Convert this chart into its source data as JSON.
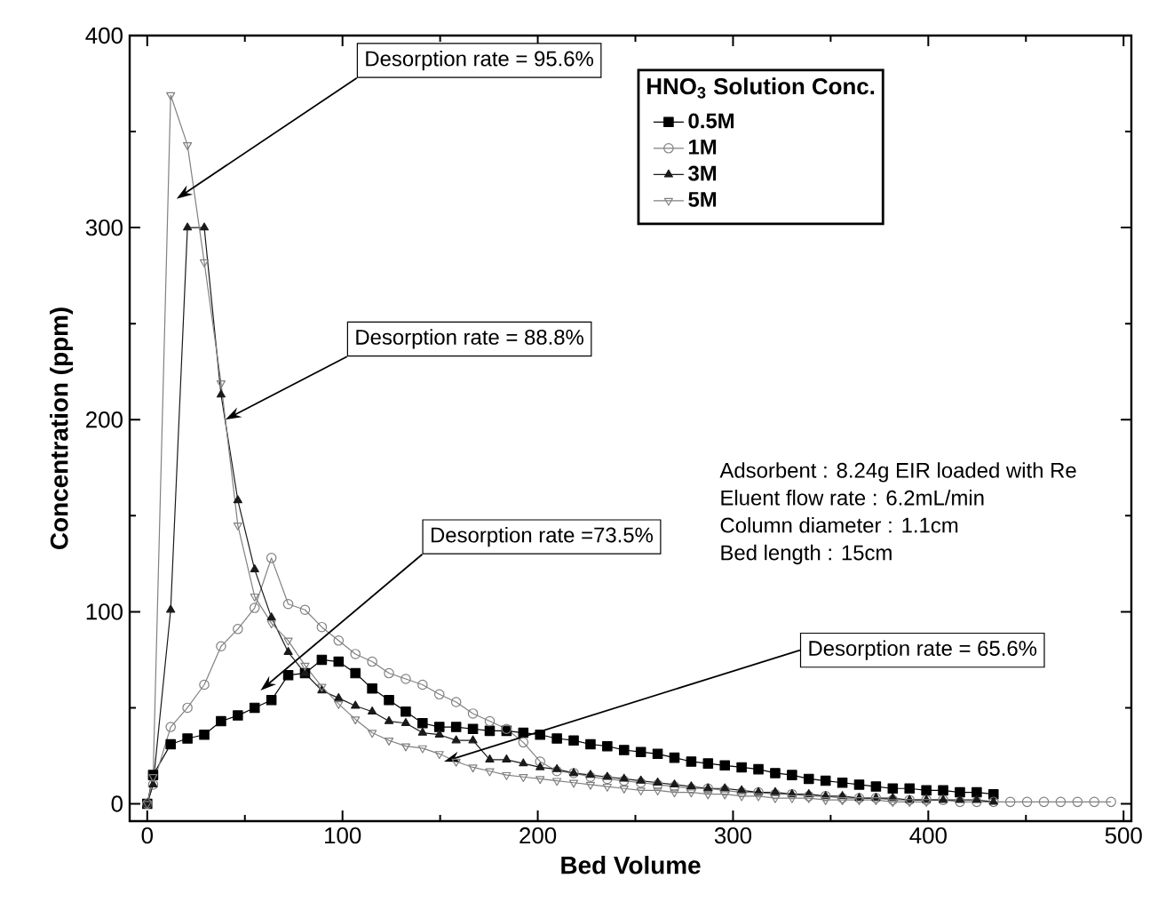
{
  "chart_data": {
    "type": "line",
    "xlabel": "Bed Volume",
    "ylabel": "Concentration (ppm)",
    "legend_title": "HNO$_{3}$ Solution Conc.",
    "legend": "top right",
    "xlim": [
      -9,
      504
    ],
    "ylim": [
      -9,
      400
    ],
    "xticks": [
      0,
      100,
      200,
      300,
      400,
      500
    ],
    "yticks": [
      0,
      100,
      200,
      300,
      400
    ],
    "x": [
      0,
      3,
      12,
      20.6,
      29.2,
      37.8,
      46.4,
      55,
      63.6,
      72.2,
      80.8,
      89.4,
      98,
      106.6,
      115.2,
      123.8,
      132.4,
      141,
      149.6,
      158.2,
      166.8,
      175.4,
      184,
      192.6,
      201.2,
      209.8,
      218.4,
      227,
      235.6,
      244.2,
      252.8,
      261.4,
      270,
      278.6,
      287.2,
      295.8,
      304.4,
      313,
      321.6,
      330.2,
      338.8,
      347.4,
      356,
      364.6,
      373.2,
      381.8,
      390.4,
      399,
      407.6,
      416.2,
      424.8,
      433.4,
      442,
      450.6,
      459.2,
      467.8,
      476.4,
      485,
      493.6
    ],
    "series": [
      {
        "name": "0.5M",
        "color": "#000000",
        "marker": "square",
        "values": [
          0,
          15,
          31,
          34,
          36,
          43,
          46,
          50,
          54,
          67,
          68,
          75,
          74,
          68,
          60,
          54,
          48,
          42,
          40,
          40,
          39,
          38,
          38,
          37,
          36,
          34,
          33,
          31,
          30,
          28,
          27,
          26,
          24,
          22,
          21,
          20,
          19,
          18,
          16,
          15,
          13,
          12,
          11,
          10,
          9,
          8,
          8,
          7,
          7,
          6,
          6,
          5,
          null,
          null,
          null,
          null,
          null,
          null,
          null
        ]
      },
      {
        "name": "1M",
        "color": "#808080",
        "marker": "circle",
        "values": [
          0,
          10,
          40,
          50,
          62,
          82,
          91,
          102,
          128,
          104,
          101,
          92,
          85,
          78,
          74,
          68,
          65,
          62,
          57,
          53,
          47,
          43,
          39,
          32,
          22,
          17,
          16,
          14,
          13,
          12,
          11,
          10,
          9,
          8,
          8,
          7,
          6,
          6,
          5,
          5,
          4,
          4,
          3,
          3,
          3,
          2,
          2,
          2,
          2,
          1,
          1,
          1,
          1,
          1,
          1,
          1,
          1,
          1,
          1
        ]
      },
      {
        "name": "3M",
        "color": "#1a1a1a",
        "marker": "triangle",
        "values": [
          0,
          10,
          101,
          300,
          300,
          213,
          158,
          122,
          97,
          79,
          68,
          59,
          55,
          51,
          48,
          43,
          42,
          37,
          36,
          33,
          33,
          23,
          23,
          21,
          19,
          18,
          16,
          15,
          14,
          13,
          12,
          11,
          10,
          9,
          8,
          8,
          7,
          6,
          6,
          5,
          5,
          4,
          4,
          3,
          3,
          3,
          2,
          2,
          2,
          2,
          2,
          1,
          null,
          null,
          null,
          null,
          null,
          null,
          null
        ]
      },
      {
        "name": "5M",
        "color": "#808080",
        "marker": "triangle",
        "values": [
          0,
          14,
          369,
          343,
          282,
          219,
          145,
          108,
          94,
          85,
          72,
          61,
          52,
          44,
          37,
          33,
          30,
          29,
          26,
          22,
          19,
          17,
          15,
          14,
          13,
          12,
          11,
          10,
          9,
          8,
          7,
          7,
          6,
          6,
          5,
          5,
          4,
          4,
          3,
          3,
          3,
          2,
          2,
          2,
          2,
          1,
          1,
          1,
          null,
          null,
          null,
          null,
          null,
          null,
          null,
          null,
          null,
          null,
          null
        ]
      }
    ],
    "annotations": [
      {
        "text": "Desorption rate = 95.6%",
        "x": 15,
        "y": 315
      },
      {
        "text": "Desorption rate = 88.8%",
        "x": 40,
        "y": 200
      },
      {
        "text": "Desorption rate =73.5%",
        "x": 58,
        "y": 59
      },
      {
        "text": "Desorption rate = 65.6%",
        "x": 152,
        "y": 22
      },
      "Adsorbent : 8.24g EIR loaded with Re",
      "Eluent flow rate : 6.2mL/min",
      "Column diameter : 1.1cm",
      "Bed length : 15cm"
    ]
  }
}
